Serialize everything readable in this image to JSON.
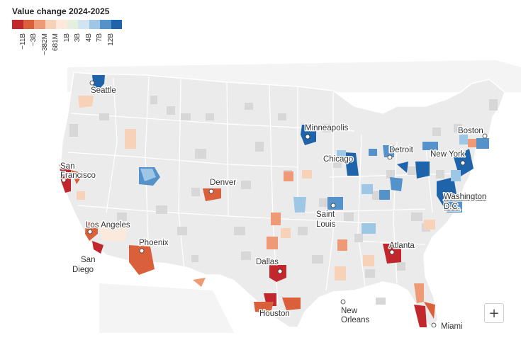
{
  "legend": {
    "title": "Value change 2024-2025",
    "labels": [
      "−11B",
      "−3B",
      "−382M",
      "681M",
      "1B",
      "3B",
      "4B",
      "7B",
      "12B"
    ],
    "colors": [
      "#c1272d",
      "#d9603b",
      "#ee9a76",
      "#f8d2b8",
      "#fbe9dc",
      "#e4efdf",
      "#d0e4f1",
      "#9ec6e5",
      "#5592c9",
      "#1f63ab"
    ]
  },
  "cities": {
    "seattle": "Seattle",
    "san_francisco_1": "San",
    "san_francisco_2": "Francisco",
    "los_angeles": "Los Angeles",
    "san_diego_1": "San",
    "san_diego_2": "Diego",
    "phoenix": "Phoenix",
    "denver": "Denver",
    "dallas": "Dallas",
    "houston": "Houston",
    "minneapolis": "Minneapolis",
    "chicago": "Chicago",
    "st_louis_1": "Saint",
    "st_louis_2": "Louis",
    "detroit": "Detroit",
    "new_orleans_1": "New",
    "new_orleans_2": "Orleans",
    "atlanta": "Atlanta",
    "miami": "Miami",
    "washington_1": "Washington",
    "washington_2": "D.C.",
    "new_york": "New York",
    "boston": "Boston"
  },
  "controls": {
    "zoom_in": "+"
  },
  "map_colors": {
    "land": "#ececec",
    "neighbor": "#f3f3f3",
    "no_data": "#d9d9d9",
    "state_border": "#ffffff"
  },
  "icons": [
    "city-dot-icon",
    "plus-icon"
  ]
}
